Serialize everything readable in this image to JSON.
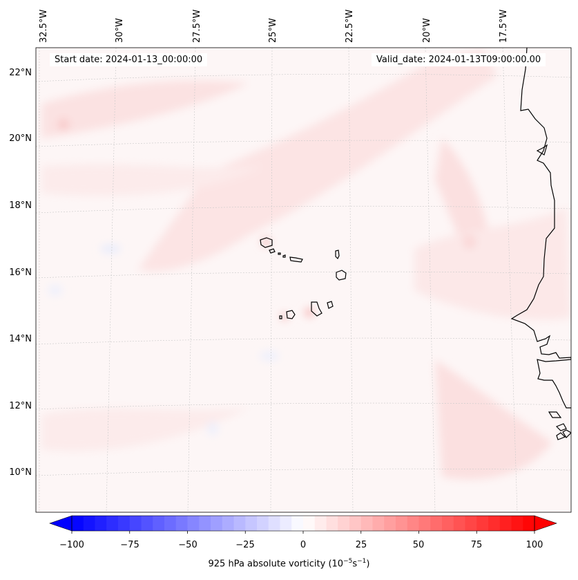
{
  "header": {
    "start_date": "Start date: 2024-01-13_00:00:00",
    "valid_date": "Valid_date: 2024-01-13T09:00:00.00"
  },
  "longitude_labels": [
    "32.5°W",
    "30°W",
    "27.5°W",
    "25°W",
    "22.5°W",
    "20°W",
    "17.5°W"
  ],
  "latitude_labels": [
    "22°N",
    "20°N",
    "18°N",
    "16°N",
    "14°N",
    "12°N",
    "10°N"
  ],
  "colorbar": {
    "ticks": [
      "−100",
      "−75",
      "−50",
      "−25",
      "0",
      "25",
      "50",
      "75",
      "100"
    ],
    "tick_values": [
      -100,
      -75,
      -50,
      -25,
      0,
      25,
      50,
      75,
      100
    ],
    "min": -100,
    "max": 100,
    "step": 5,
    "label_prefix": "925 hPa absolute vorticity (10",
    "label_exp1": "−5",
    "label_mid": "s",
    "label_exp2": "−1",
    "label_suffix": ")",
    "colormap": "bwr"
  },
  "map": {
    "variable": "925 hPa absolute vorticity",
    "colors": {
      "land_outline": "#000000",
      "grid": "#c8c8c8",
      "weak_positive": "#fdf2f2"
    },
    "regions": [
      "Cape Verde islands",
      "West African coast"
    ]
  }
}
